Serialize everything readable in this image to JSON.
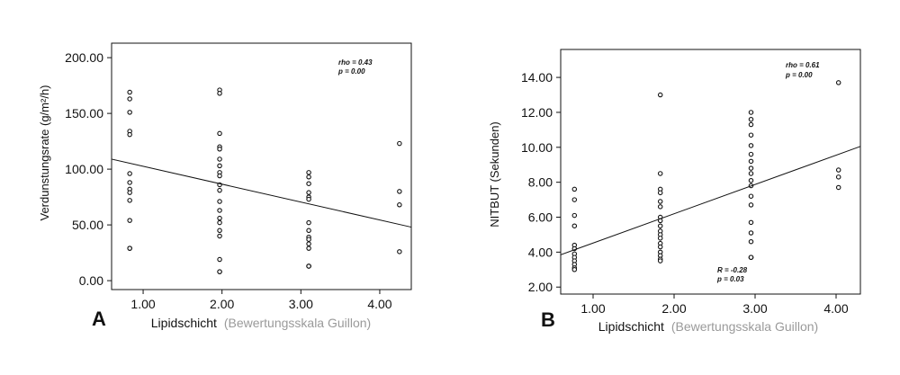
{
  "figure": {
    "panel_labels": [
      "A",
      "B"
    ]
  },
  "chart_data": [
    {
      "type": "scatter",
      "panel": "A",
      "xlabel": "Lipidschicht",
      "xlabel_note": "(Bewertungsskala Guillon)",
      "ylabel": "Verdunstungsrate (g/m²/h)",
      "xlim": [
        0.6,
        4.4
      ],
      "ylim": [
        -8,
        213
      ],
      "xticks": [
        1,
        2,
        3,
        4
      ],
      "xtick_labels": [
        "1.00",
        "2.00",
        "3.00",
        "4.00"
      ],
      "yticks": [
        0,
        50,
        100,
        150,
        200
      ],
      "ytick_labels": [
        "0.00",
        "50.00",
        "100.00",
        "150.00",
        "200.00"
      ],
      "grid": false,
      "annotations": [
        "rho = 0.43",
        "p = 0.00"
      ],
      "regression_line": [
        [
          0.6,
          109
        ],
        [
          4.4,
          48
        ]
      ],
      "series": [
        {
          "x": [
            0.83,
            0.83,
            0.83,
            0.83,
            0.83,
            0.83,
            0.83,
            0.83,
            0.83,
            0.83,
            0.83,
            0.83,
            0.83
          ],
          "y": [
            169,
            163,
            151,
            134,
            131,
            96,
            88,
            82,
            79,
            72,
            54,
            29,
            29
          ]
        },
        {
          "x": [
            1.97,
            1.97,
            1.97,
            1.97,
            1.97,
            1.97,
            1.97,
            1.97,
            1.97,
            1.97,
            1.97,
            1.97,
            1.97,
            1.97,
            1.97,
            1.97,
            1.97,
            1.97,
            1.97,
            1.97
          ],
          "y": [
            171,
            168,
            132,
            120,
            118,
            109,
            103,
            97,
            94,
            86,
            81,
            71,
            63,
            56,
            52,
            45,
            40,
            19,
            8,
            8
          ]
        },
        {
          "x": [
            3.1,
            3.1,
            3.1,
            3.1,
            3.1,
            3.1,
            3.1,
            3.1,
            3.1,
            3.1,
            3.1,
            3.1,
            3.1,
            3.1,
            3.1
          ],
          "y": [
            97,
            93,
            87,
            79,
            75,
            73,
            52,
            45,
            39,
            37,
            33,
            29,
            13,
            13,
            13
          ]
        },
        {
          "x": [
            4.25,
            4.25,
            4.25,
            4.25
          ],
          "y": [
            123,
            80,
            68,
            26
          ]
        }
      ]
    },
    {
      "type": "scatter",
      "panel": "B",
      "xlabel": "Lipidschicht",
      "xlabel_note": "(Bewertungsskala Guillon)",
      "ylabel": "NITBUT (Sekunden)",
      "xlim": [
        0.6,
        4.3
      ],
      "ylim": [
        1.6,
        15.6
      ],
      "xticks": [
        1,
        2,
        3,
        4
      ],
      "xtick_labels": [
        "1.00",
        "2.00",
        "3.00",
        "4.00"
      ],
      "yticks": [
        2,
        4,
        6,
        8,
        10,
        12,
        14
      ],
      "ytick_labels": [
        "2.00",
        "4.00",
        "6.00",
        "8.00",
        "10.00",
        "12.00",
        "14.00"
      ],
      "grid": false,
      "annotations": [
        "rho = 0.61",
        "p = 0.00"
      ],
      "annotations_2": [
        "R = -0.28",
        "p = 0.03"
      ],
      "regression_line": [
        [
          0.6,
          3.85
        ],
        [
          4.3,
          10.05
        ]
      ],
      "series": [
        {
          "x": [
            0.77,
            0.77,
            0.77,
            0.77,
            0.77,
            0.77,
            0.77,
            0.77,
            0.77,
            0.77,
            0.77,
            0.77
          ],
          "y": [
            7.6,
            7.0,
            6.1,
            5.5,
            4.4,
            4.2,
            3.9,
            3.7,
            3.5,
            3.3,
            3.1,
            3.0
          ]
        },
        {
          "x": [
            1.83,
            1.83,
            1.83,
            1.83,
            1.83,
            1.83,
            1.83,
            1.83,
            1.83,
            1.83,
            1.83,
            1.83,
            1.83,
            1.83,
            1.83,
            1.83,
            1.83,
            1.83
          ],
          "y": [
            13.0,
            8.5,
            7.6,
            7.4,
            6.9,
            6.6,
            6.0,
            5.8,
            5.5,
            5.2,
            5.0,
            4.8,
            4.5,
            4.3,
            4.0,
            3.8,
            3.6,
            3.5
          ]
        },
        {
          "x": [
            2.95,
            2.95,
            2.95,
            2.95,
            2.95,
            2.95,
            2.95,
            2.95,
            2.95,
            2.95,
            2.95,
            2.95,
            2.95,
            2.95,
            2.95,
            2.95,
            2.95,
            2.95,
            2.95
          ],
          "y": [
            12.0,
            11.6,
            11.3,
            10.7,
            10.1,
            9.6,
            9.2,
            8.8,
            8.5,
            8.1,
            7.8,
            7.2,
            6.7,
            5.7,
            5.1,
            4.6,
            3.7,
            3.7,
            3.7
          ]
        },
        {
          "x": [
            4.03,
            4.03,
            4.03,
            4.03
          ],
          "y": [
            13.7,
            8.7,
            8.3,
            7.7
          ]
        }
      ]
    }
  ]
}
